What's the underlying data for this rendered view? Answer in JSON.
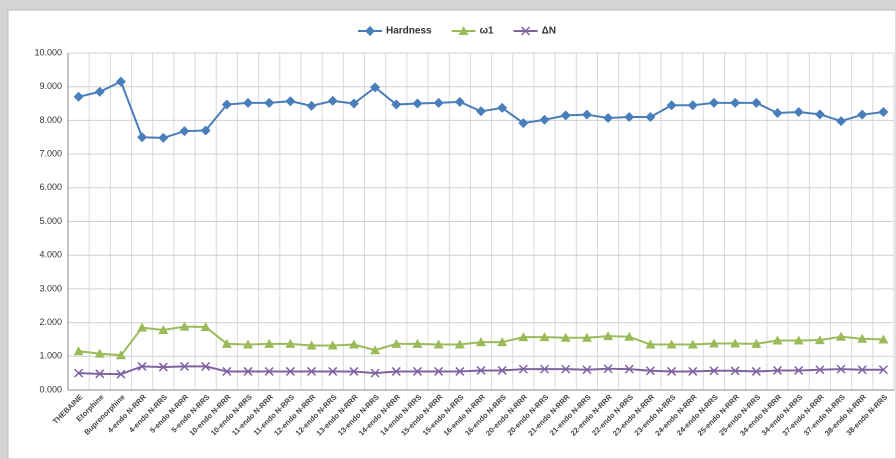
{
  "chart_data": {
    "type": "line",
    "categories": [
      "THEBAINE",
      "Etorphine",
      "Buprenorphine",
      "4-endo N-RRR",
      "4-endo N-RRS",
      "5-endo N-RRR",
      "5-endo N-RRS",
      "10-endo N-RRR",
      "10-endo N-RRS",
      "11-endo N-RRR",
      "11-endo N-RRS",
      "12-endo N-RRR",
      "12-endo N-RRS",
      "13-endo N-RRR",
      "13-endo N-RRS",
      "14-endo N-RRR",
      "14-endo N-RRS",
      "15-endo N-RRR",
      "15-endo N-RRS",
      "16-endo N-RRR",
      "16-endo N-RRS",
      "20-endo N-RRR",
      "20-endo N-RRS",
      "21-endo N-RRR",
      "21-endo N-RRS",
      "22-endo N-RRR",
      "22-endo N-RRS",
      "23-endo N-RRR",
      "23-endo N-RRS",
      "24-endo N-RRR",
      "24-endo N-RRS",
      "25-endo N-RRR",
      "25-endo N-RRS",
      "34-endo N-RRR",
      "34-endo N-RRS",
      "37-endo N-RRR",
      "37-endo N-RRS",
      "38-endo N-RRR",
      "38-endo N-RRS"
    ],
    "series": [
      {
        "name": "Hardness",
        "color": "#4a7ebb",
        "marker": "diamond",
        "values": [
          8.7,
          8.85,
          9.15,
          7.5,
          7.48,
          7.68,
          7.7,
          8.47,
          8.52,
          8.52,
          8.57,
          8.43,
          8.58,
          8.5,
          8.98,
          8.47,
          8.5,
          8.52,
          8.55,
          8.27,
          8.37,
          7.92,
          8.02,
          8.15,
          8.17,
          8.07,
          8.1,
          8.1,
          8.45,
          8.45,
          8.52,
          8.52,
          8.52,
          8.22,
          8.25,
          8.18,
          7.98,
          8.17,
          8.25
        ]
      },
      {
        "name": "ω1",
        "color": "#9bbb59",
        "marker": "triangle",
        "values": [
          1.15,
          1.08,
          1.03,
          1.85,
          1.78,
          1.88,
          1.87,
          1.37,
          1.35,
          1.37,
          1.37,
          1.32,
          1.32,
          1.35,
          1.18,
          1.37,
          1.37,
          1.35,
          1.35,
          1.42,
          1.42,
          1.57,
          1.57,
          1.55,
          1.55,
          1.6,
          1.58,
          1.35,
          1.35,
          1.35,
          1.38,
          1.38,
          1.37,
          1.47,
          1.47,
          1.48,
          1.58,
          1.52,
          1.5
        ]
      },
      {
        "name": "ΔN",
        "color": "#8064a2",
        "marker": "cross",
        "values": [
          0.5,
          0.48,
          0.47,
          0.7,
          0.68,
          0.7,
          0.7,
          0.55,
          0.55,
          0.55,
          0.55,
          0.55,
          0.55,
          0.55,
          0.5,
          0.55,
          0.55,
          0.55,
          0.55,
          0.58,
          0.58,
          0.62,
          0.62,
          0.62,
          0.6,
          0.63,
          0.62,
          0.57,
          0.55,
          0.55,
          0.57,
          0.57,
          0.55,
          0.58,
          0.58,
          0.6,
          0.62,
          0.6,
          0.6
        ]
      }
    ],
    "ylim": [
      0,
      10
    ],
    "yticks": [
      {
        "value": 0,
        "label": "0.000"
      },
      {
        "value": 1,
        "label": "1.000"
      },
      {
        "value": 2,
        "label": "2.000"
      },
      {
        "value": 3,
        "label": "3.000"
      },
      {
        "value": 4,
        "label": "4.000"
      },
      {
        "value": 5,
        "label": "5.000"
      },
      {
        "value": 6,
        "label": "6.000"
      },
      {
        "value": 7,
        "label": "7.000"
      },
      {
        "value": 8,
        "label": "8.000"
      },
      {
        "value": 9,
        "label": "9.000"
      },
      {
        "value": 10,
        "label": "10.000"
      }
    ],
    "grid": true,
    "legend": "top"
  }
}
